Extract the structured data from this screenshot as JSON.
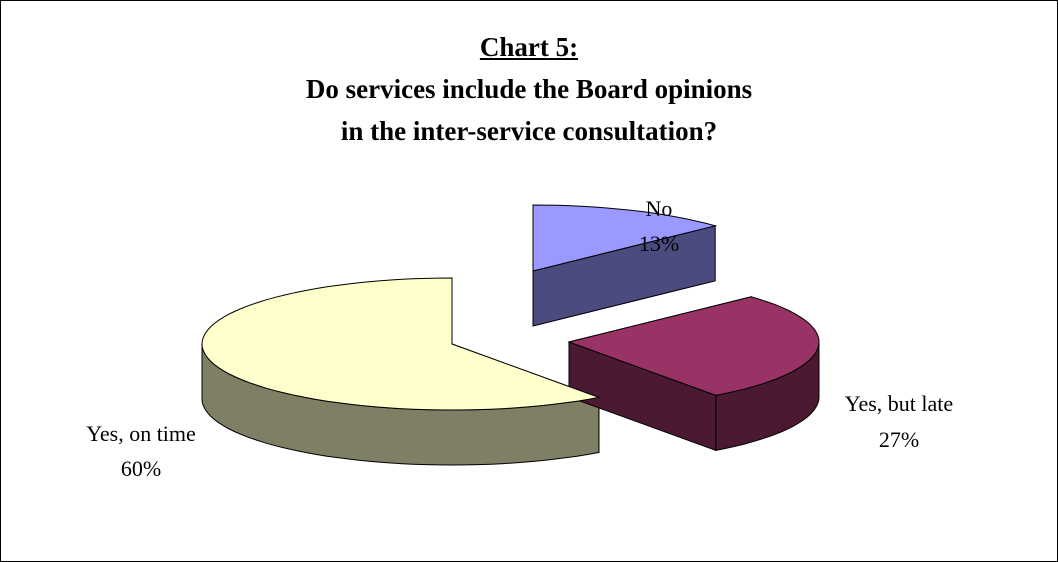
{
  "chart_data": {
    "type": "pie",
    "title_lines": [
      "Chart 5:",
      "Do services include the Board opinions",
      "in the inter-service consultation?"
    ],
    "slices": [
      {
        "label": "No",
        "value": 13,
        "value_label": "13%",
        "color": "#9999FF",
        "side_color": "#4B4B7F"
      },
      {
        "label": "Yes, but late",
        "value": 27,
        "value_label": "27%",
        "color": "#993366",
        "side_color": "#4C1933"
      },
      {
        "label": "Yes, on time",
        "value": 60,
        "value_label": "60%",
        "color": "#FFFFCC",
        "side_color": "#7F7F66"
      }
    ],
    "three_d": true,
    "legend": "none"
  }
}
